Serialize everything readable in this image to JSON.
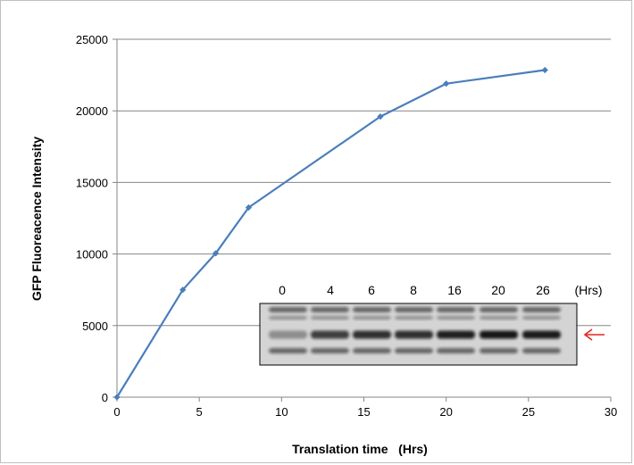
{
  "chart_data": {
    "type": "line",
    "title": "",
    "xlabel": "Translation time   (Hrs)",
    "ylabel": "GFP Fluoreacence Intensity",
    "xlim": [
      0,
      30
    ],
    "ylim": [
      0,
      25000
    ],
    "xticks": [
      0,
      5,
      10,
      15,
      20,
      25,
      30
    ],
    "yticks": [
      0,
      5000,
      10000,
      15000,
      20000,
      25000
    ],
    "grid": "horizontal",
    "legend": "none",
    "series": [
      {
        "color": "#4a7ebb",
        "x": [
          0,
          4,
          6,
          8,
          16,
          20,
          26
        ],
        "y": [
          0,
          7500,
          10050,
          13250,
          19600,
          21900,
          22850
        ]
      }
    ]
  },
  "gel_inset": {
    "lane_labels": [
      "0",
      "4",
      "6",
      "8",
      "16",
      "20",
      "26"
    ],
    "unit_label": "(Hrs)",
    "arrow_color": "#e8251f",
    "band_intensity": [
      0.35,
      0.75,
      0.82,
      0.82,
      0.9,
      0.95,
      0.92
    ]
  }
}
